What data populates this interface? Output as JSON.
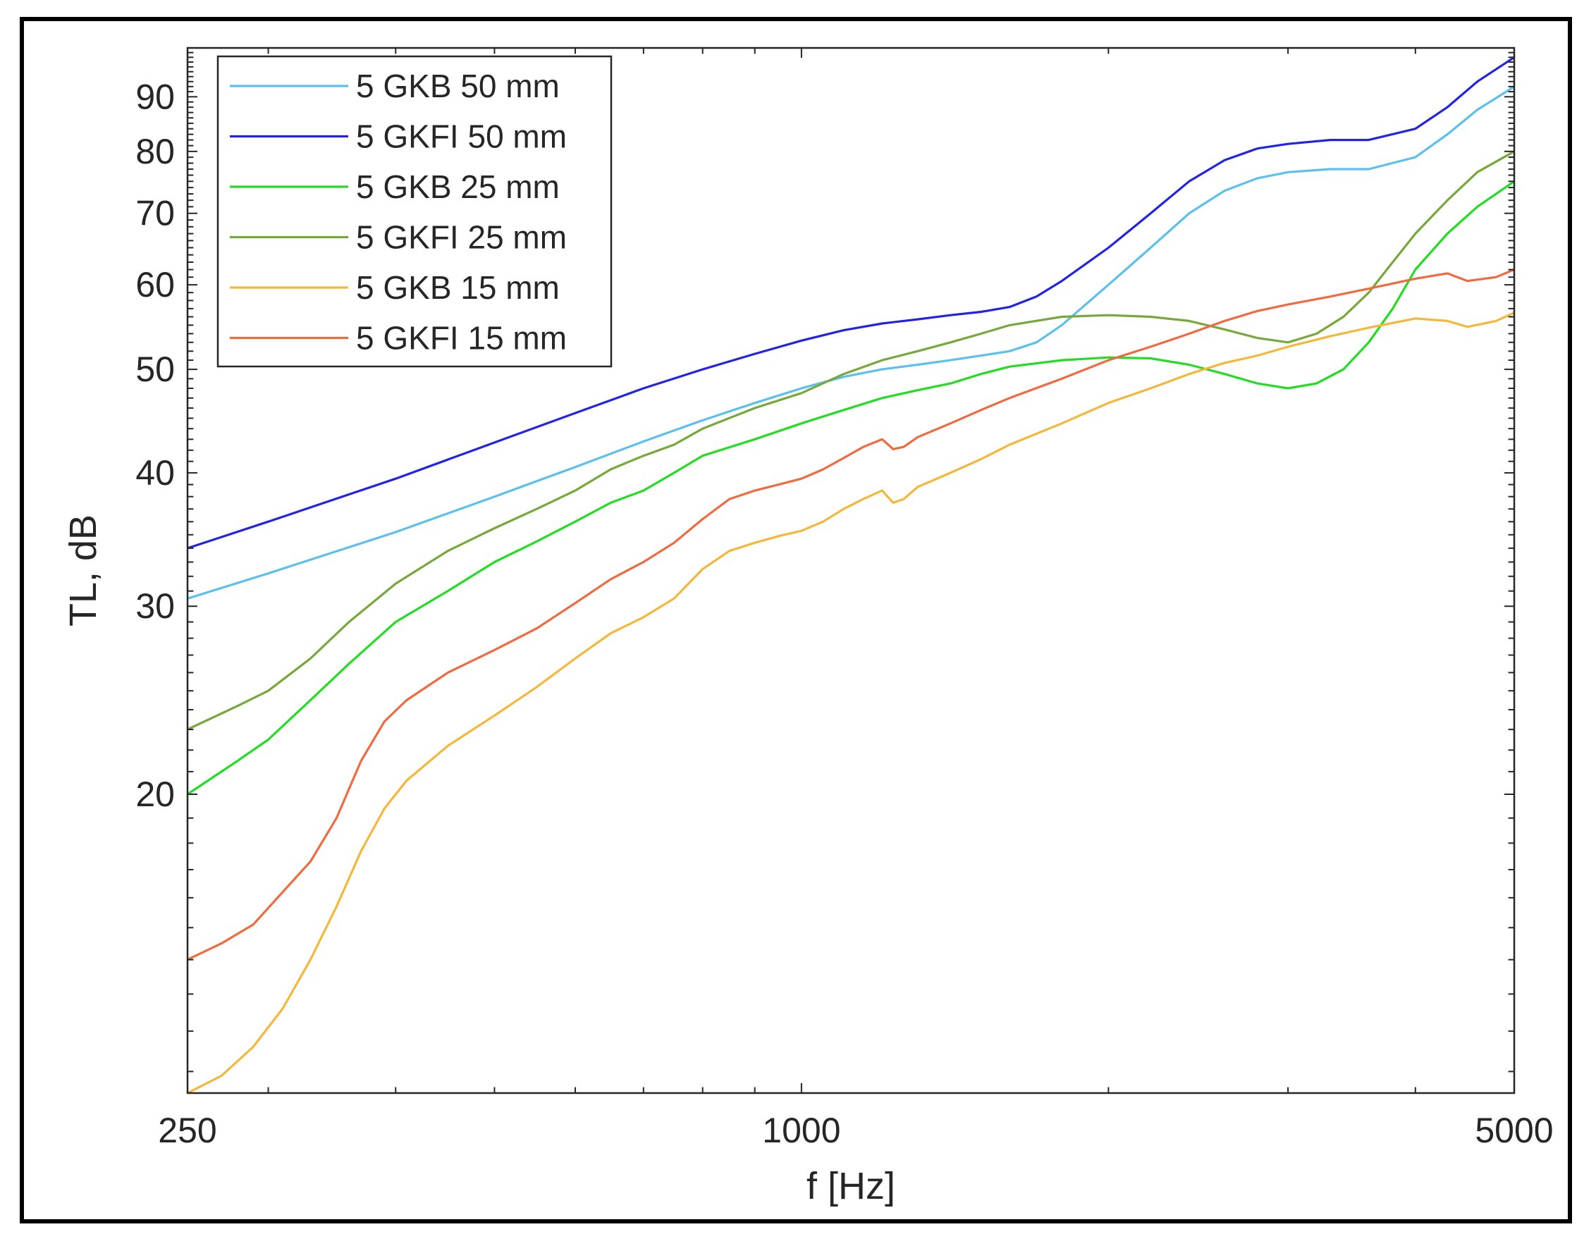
{
  "chart_data": {
    "type": "line",
    "title": "",
    "xlabel": "f [Hz]",
    "ylabel": "TL, dB",
    "xscale": "log",
    "yscale": "log",
    "xlim": [
      250,
      5000
    ],
    "ylim": [
      10.5,
      100
    ],
    "xticks": [
      250,
      1000,
      5000
    ],
    "xtick_labels": [
      "250",
      "1000",
      "5000"
    ],
    "yticks": [
      20,
      30,
      40,
      50,
      60,
      70,
      80,
      90
    ],
    "ytick_labels": [
      "20",
      "30",
      "40",
      "50",
      "60",
      "70",
      "80",
      "90"
    ],
    "legend_position": "top-left",
    "grid": false,
    "series": [
      {
        "name": "5 GKB 50 mm",
        "color": "#5bc0eb",
        "points": [
          [
            250,
            30.5
          ],
          [
            300,
            32.2
          ],
          [
            400,
            35.2
          ],
          [
            500,
            38.0
          ],
          [
            600,
            40.5
          ],
          [
            700,
            42.8
          ],
          [
            800,
            44.8
          ],
          [
            900,
            46.5
          ],
          [
            1000,
            48.0
          ],
          [
            1100,
            49.2
          ],
          [
            1200,
            50.0
          ],
          [
            1300,
            50.5
          ],
          [
            1400,
            51.0
          ],
          [
            1500,
            51.5
          ],
          [
            1600,
            52.0
          ],
          [
            1700,
            53.0
          ],
          [
            1800,
            55.0
          ],
          [
            2000,
            60.0
          ],
          [
            2200,
            65.0
          ],
          [
            2400,
            70.0
          ],
          [
            2600,
            73.5
          ],
          [
            2800,
            75.5
          ],
          [
            3000,
            76.5
          ],
          [
            3300,
            77.0
          ],
          [
            3600,
            77.0
          ],
          [
            4000,
            79.0
          ],
          [
            4300,
            83.0
          ],
          [
            4600,
            87.5
          ],
          [
            5000,
            92.0
          ]
        ]
      },
      {
        "name": "5 GKFI 50 mm",
        "color": "#2323e6",
        "points": [
          [
            250,
            34.0
          ],
          [
            300,
            36.0
          ],
          [
            400,
            39.5
          ],
          [
            500,
            42.7
          ],
          [
            600,
            45.5
          ],
          [
            700,
            48.0
          ],
          [
            800,
            50.0
          ],
          [
            900,
            51.7
          ],
          [
            1000,
            53.2
          ],
          [
            1100,
            54.4
          ],
          [
            1200,
            55.2
          ],
          [
            1300,
            55.7
          ],
          [
            1400,
            56.2
          ],
          [
            1500,
            56.6
          ],
          [
            1600,
            57.2
          ],
          [
            1700,
            58.5
          ],
          [
            1800,
            60.5
          ],
          [
            2000,
            65.0
          ],
          [
            2200,
            70.0
          ],
          [
            2400,
            75.0
          ],
          [
            2600,
            78.5
          ],
          [
            2800,
            80.5
          ],
          [
            3000,
            81.3
          ],
          [
            3300,
            82.0
          ],
          [
            3600,
            82.0
          ],
          [
            4000,
            84.0
          ],
          [
            4300,
            88.0
          ],
          [
            4600,
            93.0
          ],
          [
            5000,
            98.0
          ]
        ]
      },
      {
        "name": "5 GKB 25 mm",
        "color": "#22dd22",
        "points": [
          [
            250,
            20.0
          ],
          [
            280,
            21.5
          ],
          [
            300,
            22.5
          ],
          [
            330,
            24.5
          ],
          [
            360,
            26.5
          ],
          [
            400,
            29.0
          ],
          [
            450,
            31.0
          ],
          [
            500,
            33.0
          ],
          [
            550,
            34.5
          ],
          [
            600,
            36.0
          ],
          [
            650,
            37.5
          ],
          [
            700,
            38.5
          ],
          [
            750,
            40.0
          ],
          [
            800,
            41.5
          ],
          [
            900,
            43.0
          ],
          [
            1000,
            44.5
          ],
          [
            1100,
            45.8
          ],
          [
            1200,
            47.0
          ],
          [
            1300,
            47.8
          ],
          [
            1400,
            48.5
          ],
          [
            1500,
            49.5
          ],
          [
            1600,
            50.3
          ],
          [
            1800,
            51.0
          ],
          [
            2000,
            51.3
          ],
          [
            2200,
            51.2
          ],
          [
            2400,
            50.5
          ],
          [
            2600,
            49.5
          ],
          [
            2800,
            48.5
          ],
          [
            3000,
            48.0
          ],
          [
            3200,
            48.5
          ],
          [
            3400,
            50.0
          ],
          [
            3600,
            53.0
          ],
          [
            3800,
            57.0
          ],
          [
            4000,
            62.0
          ],
          [
            4300,
            67.0
          ],
          [
            4600,
            71.0
          ],
          [
            5000,
            75.0
          ]
        ]
      },
      {
        "name": "5 GKFI 25 mm",
        "color": "#77a83a",
        "points": [
          [
            250,
            23.0
          ],
          [
            280,
            24.2
          ],
          [
            300,
            25.0
          ],
          [
            330,
            26.8
          ],
          [
            360,
            29.0
          ],
          [
            400,
            31.5
          ],
          [
            450,
            33.8
          ],
          [
            500,
            35.5
          ],
          [
            550,
            37.0
          ],
          [
            600,
            38.5
          ],
          [
            650,
            40.3
          ],
          [
            700,
            41.5
          ],
          [
            750,
            42.5
          ],
          [
            800,
            44.0
          ],
          [
            900,
            46.0
          ],
          [
            1000,
            47.5
          ],
          [
            1100,
            49.5
          ],
          [
            1200,
            51.0
          ],
          [
            1300,
            52.0
          ],
          [
            1400,
            53.0
          ],
          [
            1500,
            54.0
          ],
          [
            1600,
            55.0
          ],
          [
            1800,
            56.0
          ],
          [
            2000,
            56.2
          ],
          [
            2200,
            56.0
          ],
          [
            2400,
            55.5
          ],
          [
            2600,
            54.5
          ],
          [
            2800,
            53.5
          ],
          [
            3000,
            53.0
          ],
          [
            3200,
            54.0
          ],
          [
            3400,
            56.0
          ],
          [
            3600,
            59.0
          ],
          [
            3800,
            63.0
          ],
          [
            4000,
            67.0
          ],
          [
            4300,
            72.0
          ],
          [
            4600,
            76.5
          ],
          [
            5000,
            80.0
          ]
        ]
      },
      {
        "name": "5 GKB 15 mm",
        "color": "#f5b73a",
        "points": [
          [
            250,
            10.5
          ],
          [
            270,
            10.9
          ],
          [
            290,
            11.6
          ],
          [
            310,
            12.6
          ],
          [
            330,
            14.0
          ],
          [
            350,
            15.7
          ],
          [
            370,
            17.7
          ],
          [
            390,
            19.4
          ],
          [
            410,
            20.6
          ],
          [
            450,
            22.2
          ],
          [
            500,
            23.7
          ],
          [
            550,
            25.2
          ],
          [
            600,
            26.8
          ],
          [
            650,
            28.3
          ],
          [
            700,
            29.3
          ],
          [
            750,
            30.5
          ],
          [
            800,
            32.5
          ],
          [
            850,
            33.8
          ],
          [
            900,
            34.4
          ],
          [
            950,
            34.9
          ],
          [
            1000,
            35.3
          ],
          [
            1050,
            36.0
          ],
          [
            1100,
            37.0
          ],
          [
            1150,
            37.8
          ],
          [
            1200,
            38.5
          ],
          [
            1230,
            37.5
          ],
          [
            1260,
            37.8
          ],
          [
            1300,
            38.8
          ],
          [
            1400,
            40.0
          ],
          [
            1500,
            41.2
          ],
          [
            1600,
            42.5
          ],
          [
            1800,
            44.5
          ],
          [
            2000,
            46.5
          ],
          [
            2200,
            48.0
          ],
          [
            2400,
            49.5
          ],
          [
            2600,
            50.7
          ],
          [
            2800,
            51.5
          ],
          [
            3000,
            52.5
          ],
          [
            3300,
            53.7
          ],
          [
            3600,
            54.7
          ],
          [
            4000,
            55.8
          ],
          [
            4300,
            55.5
          ],
          [
            4500,
            54.8
          ],
          [
            4800,
            55.5
          ],
          [
            5000,
            56.5
          ]
        ]
      },
      {
        "name": "5 GKFI 15 mm",
        "color": "#f06a40",
        "points": [
          [
            250,
            14.0
          ],
          [
            270,
            14.5
          ],
          [
            290,
            15.1
          ],
          [
            310,
            16.2
          ],
          [
            330,
            17.3
          ],
          [
            350,
            19.0
          ],
          [
            370,
            21.5
          ],
          [
            390,
            23.4
          ],
          [
            410,
            24.5
          ],
          [
            450,
            26.0
          ],
          [
            500,
            27.3
          ],
          [
            550,
            28.6
          ],
          [
            600,
            30.2
          ],
          [
            650,
            31.8
          ],
          [
            700,
            33.0
          ],
          [
            750,
            34.4
          ],
          [
            800,
            36.2
          ],
          [
            850,
            37.8
          ],
          [
            900,
            38.5
          ],
          [
            950,
            39.0
          ],
          [
            1000,
            39.5
          ],
          [
            1050,
            40.3
          ],
          [
            1100,
            41.3
          ],
          [
            1150,
            42.3
          ],
          [
            1200,
            43.0
          ],
          [
            1230,
            42.1
          ],
          [
            1260,
            42.3
          ],
          [
            1300,
            43.2
          ],
          [
            1400,
            44.5
          ],
          [
            1500,
            45.8
          ],
          [
            1600,
            47.0
          ],
          [
            1800,
            49.0
          ],
          [
            2000,
            51.0
          ],
          [
            2200,
            52.5
          ],
          [
            2400,
            54.0
          ],
          [
            2600,
            55.5
          ],
          [
            2800,
            56.7
          ],
          [
            3000,
            57.5
          ],
          [
            3300,
            58.5
          ],
          [
            3600,
            59.5
          ],
          [
            4000,
            60.8
          ],
          [
            4300,
            61.5
          ],
          [
            4500,
            60.5
          ],
          [
            4800,
            61.0
          ],
          [
            5000,
            62.0
          ]
        ]
      }
    ]
  }
}
